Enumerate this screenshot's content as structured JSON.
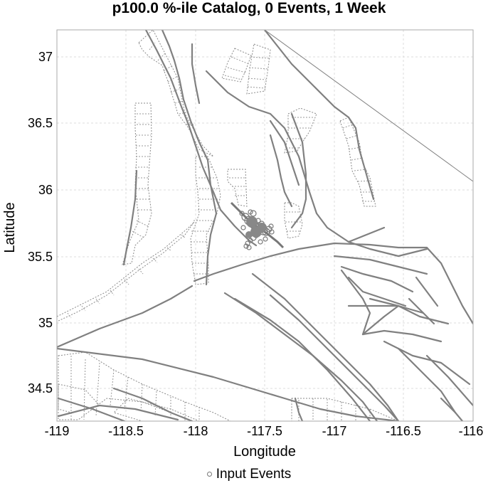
{
  "title": "p100.0 %-ile Catalog, 0 Events, 1 Week",
  "axes": {
    "xlabel": "Longitude",
    "ylabel": "Latitude",
    "xlim": [
      -119,
      -116
    ],
    "ylim": [
      34.23,
      37.22
    ],
    "xticks": [
      "-119",
      "-118.5",
      "-118",
      "-117.5",
      "-117",
      "-116.5",
      "-116"
    ],
    "yticks": [
      "37",
      "36.5",
      "36",
      "35.5",
      "35",
      "34.5"
    ],
    "grid": true
  },
  "legend": {
    "label": "Input Events",
    "placement": "bottom-center"
  },
  "colors": {
    "fault": "#808080",
    "events": "#777777",
    "grid": "#dcdcdc"
  }
}
